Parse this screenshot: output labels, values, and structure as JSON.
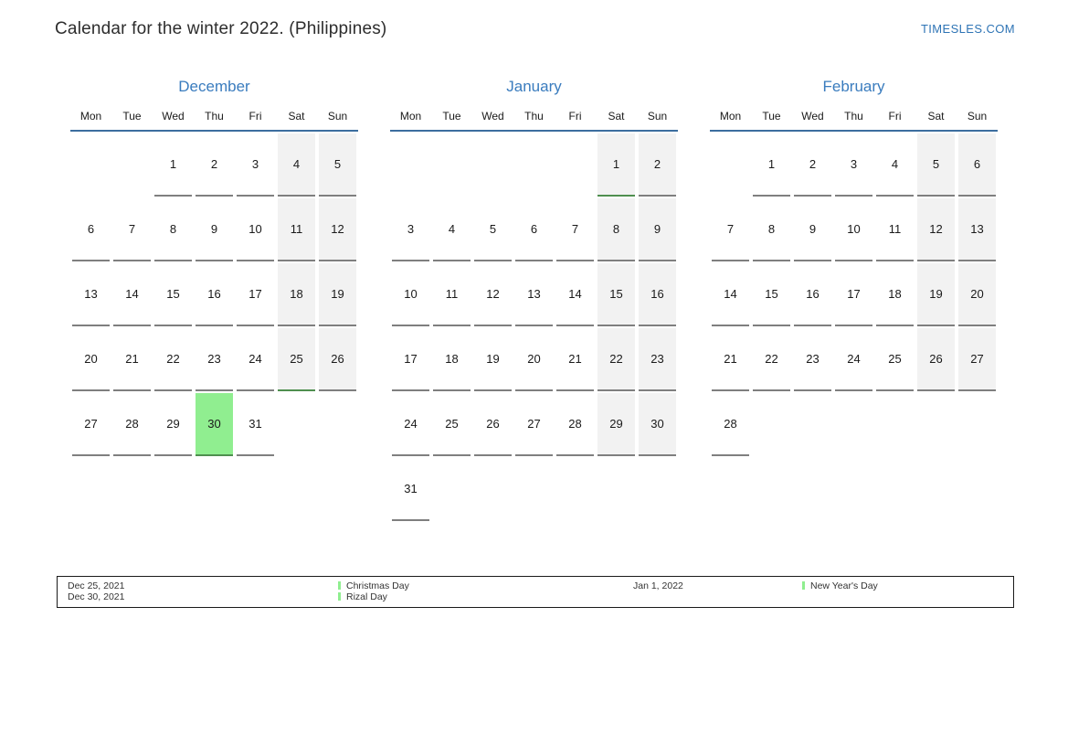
{
  "header": {
    "title": "Calendar for the winter 2022. (Philippines)",
    "site_link": "TIMESLES.COM"
  },
  "calendar": {
    "day_names": [
      "Mon",
      "Tue",
      "Wed",
      "Thu",
      "Fri",
      "Sat",
      "Sun"
    ],
    "months": [
      {
        "name": "December",
        "weeks": [
          [
            null,
            null,
            1,
            2,
            3,
            4,
            5
          ],
          [
            6,
            7,
            8,
            9,
            10,
            11,
            12
          ],
          [
            13,
            14,
            15,
            16,
            17,
            18,
            19
          ],
          [
            20,
            21,
            22,
            23,
            24,
            25,
            26
          ],
          [
            27,
            28,
            29,
            30,
            31,
            null,
            null
          ]
        ],
        "highlighted_days": [
          25,
          30
        ]
      },
      {
        "name": "January",
        "weeks": [
          [
            null,
            null,
            null,
            null,
            null,
            1,
            2
          ],
          [
            3,
            4,
            5,
            6,
            7,
            8,
            9
          ],
          [
            10,
            11,
            12,
            13,
            14,
            15,
            16
          ],
          [
            17,
            18,
            19,
            20,
            21,
            22,
            23
          ],
          [
            24,
            25,
            26,
            27,
            28,
            29,
            30
          ],
          [
            31,
            null,
            null,
            null,
            null,
            null,
            null
          ]
        ],
        "highlighted_days": [
          1
        ]
      },
      {
        "name": "February",
        "weeks": [
          [
            null,
            1,
            2,
            3,
            4,
            5,
            6
          ],
          [
            7,
            8,
            9,
            10,
            11,
            12,
            13
          ],
          [
            14,
            15,
            16,
            17,
            18,
            19,
            20
          ],
          [
            21,
            22,
            23,
            24,
            25,
            26,
            27
          ],
          [
            28,
            null,
            null,
            null,
            null,
            null,
            null
          ]
        ],
        "highlighted_days": []
      }
    ]
  },
  "legend": {
    "entries": [
      {
        "dates": [
          "Dec 25, 2021",
          "Dec 30, 2021"
        ],
        "names": [
          "Christmas Day",
          "Rizal Day"
        ]
      },
      {
        "dates": [
          "Jan 1, 2022"
        ],
        "names": [
          "New Year's Day"
        ]
      }
    ]
  },
  "colors": {
    "accent_blue": "#3a7cbe",
    "link_blue": "#2e74b5",
    "header_rule_blue": "#3c6e9f",
    "weekend_gray": "#f2f2f2",
    "holiday_green": "#90ee90",
    "cell_rule_gray": "#7f7f7f"
  }
}
